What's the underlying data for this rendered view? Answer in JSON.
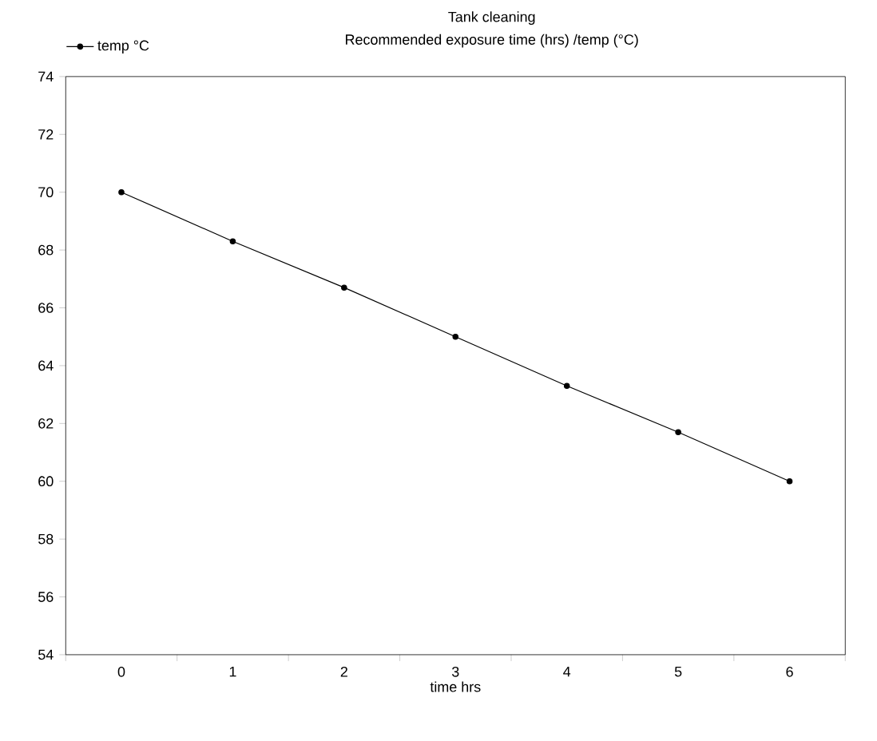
{
  "chart_data": {
    "type": "line",
    "title": "Tank cleaning",
    "subtitle": "Recommended exposure time (hrs) /temp (°C)",
    "xlabel": "time hrs",
    "categories": [
      "0",
      "1",
      "2",
      "3",
      "4",
      "5",
      "6"
    ],
    "series": [
      {
        "name": "temp  °C",
        "color": "#000000",
        "values": [
          70,
          68.3,
          66.7,
          65,
          63.3,
          61.7,
          60
        ]
      }
    ],
    "ylim": [
      54,
      74
    ],
    "yticks": [
      54,
      56,
      58,
      60,
      62,
      64,
      66,
      68,
      70,
      72,
      74
    ],
    "grid": false,
    "legend": "top left",
    "marker": "circle",
    "line_style": "solid"
  }
}
